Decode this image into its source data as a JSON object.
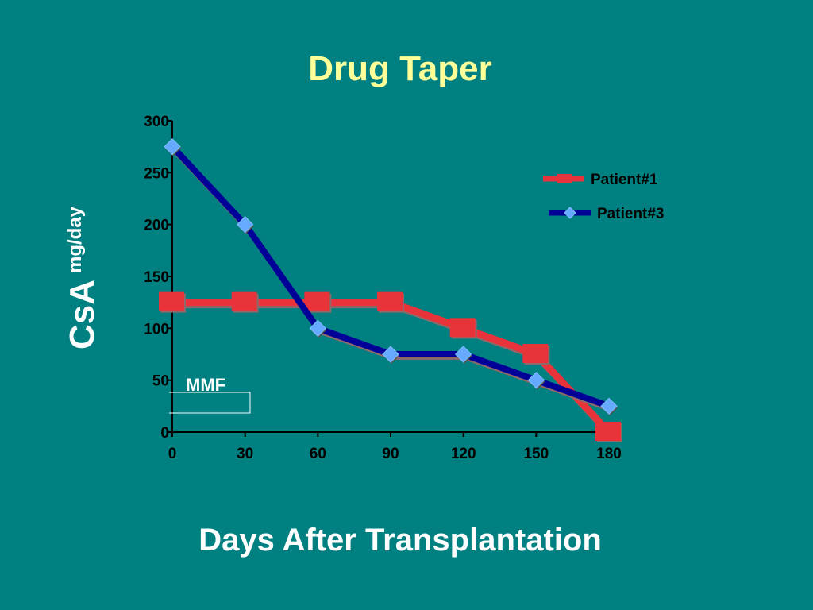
{
  "chart_data": {
    "type": "line",
    "title": "Drug Taper",
    "xlabel": "Days After Transplantation",
    "ylabel": "CsA",
    "ylabel_unit": "mg/day",
    "x": [
      0,
      30,
      60,
      90,
      120,
      150,
      180
    ],
    "xlim": [
      0,
      180
    ],
    "ylim": [
      0,
      300
    ],
    "xticks": [
      "0",
      "30",
      "60",
      "90",
      "120",
      "150",
      "180"
    ],
    "yticks": [
      "0",
      "50",
      "100",
      "150",
      "200",
      "250",
      "300"
    ],
    "grid": false,
    "legend_position": "top-right",
    "series": [
      {
        "name": "Patient#1",
        "values": [
          125,
          125,
          125,
          125,
          100,
          75,
          0
        ],
        "color": "#e8333b",
        "marker": "square"
      },
      {
        "name": "Patient#3",
        "values": [
          275,
          200,
          100,
          75,
          75,
          50,
          25
        ],
        "color": "#000099",
        "marker": "diamond",
        "marker_color": "#66aaff"
      }
    ],
    "annotations": [
      {
        "text": "MMF"
      }
    ]
  }
}
